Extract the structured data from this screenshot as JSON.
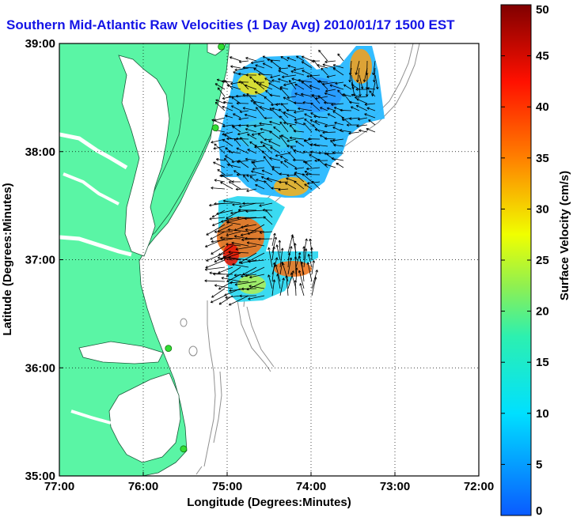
{
  "title": "Southern Mid-Atlantic Raw Velocities (1 Day Avg) 2010/01/17 1500 EST",
  "map": {
    "xlabel": "Longitude (Degrees:Minutes)",
    "ylabel": "Latitude (Degrees:Minutes)",
    "x_ticks": [
      "77:00",
      "76:00",
      "75:00",
      "74:00",
      "73:00",
      "72:00"
    ],
    "y_ticks": [
      "39:00",
      "38:00",
      "37:00",
      "36:00",
      "35:00"
    ],
    "x_range": [
      -77,
      -72
    ],
    "y_range": [
      35,
      39
    ],
    "grid": "dotted",
    "land_color": "#5af5a5",
    "water_color": "#ffffff",
    "bathymetry_color": "#909090",
    "station_color": "#33dd33",
    "stations": [
      {
        "lon": -75.07,
        "lat": 38.97
      },
      {
        "lon": -75.14,
        "lat": 38.22
      },
      {
        "lon": -75.7,
        "lat": 36.18
      },
      {
        "lon": -75.52,
        "lat": 35.25
      }
    ]
  },
  "colorbar": {
    "label": "Surface Velocity (cm/s)",
    "range": [
      0,
      50
    ],
    "ticks": [
      "0",
      "5",
      "10",
      "15",
      "20",
      "25",
      "30",
      "35",
      "40",
      "45",
      "50"
    ]
  }
}
